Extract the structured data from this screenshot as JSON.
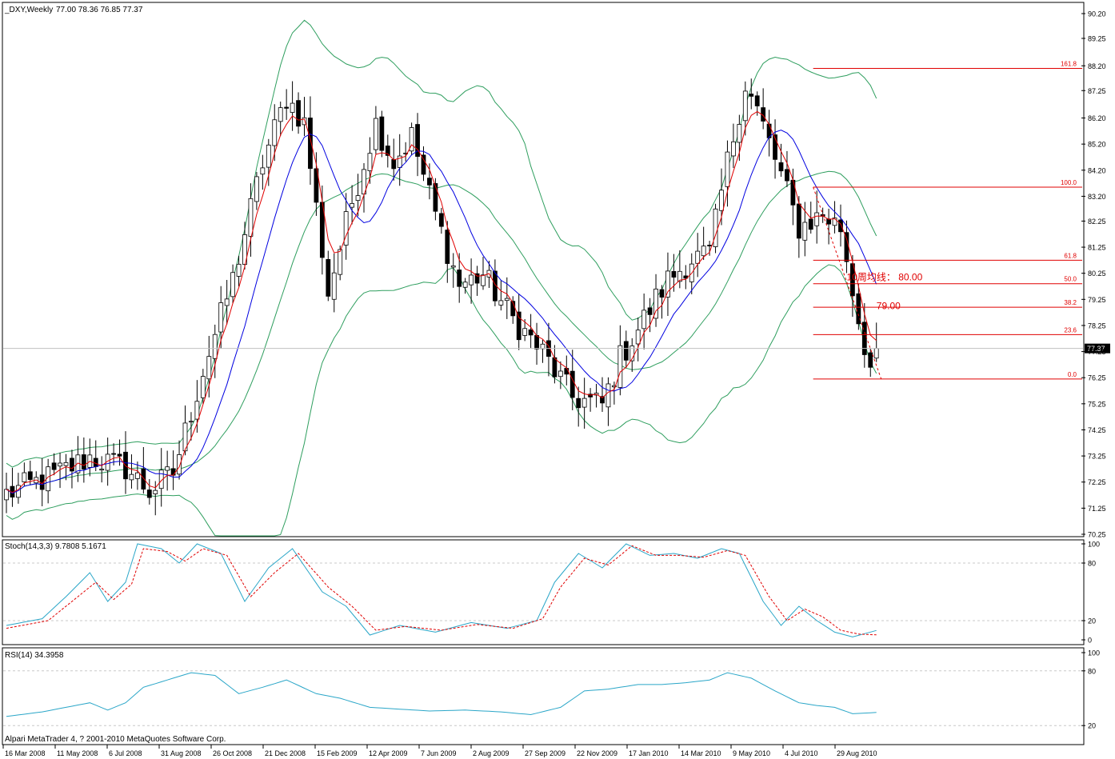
{
  "window": {
    "symbol_label": "_DXY,Weekly",
    "ohlc_label": "77.00 78.36 76.85 77.37",
    "current_price_tag": "77.37",
    "copyright": "Alpari MetaTrader 4, ? 2001-2010 MetaQuotes Software Corp."
  },
  "colors": {
    "background": "#ffffff",
    "candle_bull_fill": "#ffffff",
    "candle_bear_fill": "#000000",
    "ma_fast": "#e00000",
    "ma_slow": "#0000e0",
    "bollinger": "#2e9e5e",
    "stoch_main": "#2aa6c8",
    "stoch_signal": "#e00000",
    "rsi": "#2aa6c8",
    "fib": "#e00000",
    "grid": "#c8c8c8"
  },
  "chart_data": [
    {
      "type": "candlestick",
      "title": "_DXY,Weekly",
      "ylim": [
        70.25,
        90.2
      ],
      "price_ticks": [
        "90.20",
        "89.25",
        "88.20",
        "87.25",
        "86.20",
        "85.20",
        "84.20",
        "83.20",
        "82.25",
        "81.25",
        "80.25",
        "79.25",
        "78.25",
        "77.25",
        "76.25",
        "75.25",
        "74.25",
        "73.25",
        "72.25",
        "71.25",
        "70.25"
      ],
      "x_labels": [
        "16 Mar 2008",
        "11 May 2008",
        "6 Jul 2008",
        "31 Aug 2008",
        "26 Oct 2008",
        "21 Dec 2008",
        "15 Feb 2009",
        "12 Apr 2009",
        "7 Jun 2009",
        "2 Aug 2009",
        "27 Sep 2009",
        "22 Nov 2009",
        "17 Jan 2010",
        "14 Mar 2010",
        "9 May 2010",
        "4 Jul 2010",
        "29 Aug 2010"
      ],
      "anchors": [
        [
          0,
          71.8
        ],
        [
          8,
          72.5
        ],
        [
          14,
          73.2
        ],
        [
          20,
          72.8
        ],
        [
          24,
          71.9
        ],
        [
          28,
          72.6
        ],
        [
          33,
          76.5
        ],
        [
          38,
          80.0
        ],
        [
          43,
          84.5
        ],
        [
          47,
          87.0
        ],
        [
          50,
          86.0
        ],
        [
          54,
          79.5
        ],
        [
          58,
          83.0
        ],
        [
          62,
          86.0
        ],
        [
          65,
          84.5
        ],
        [
          68,
          85.5
        ],
        [
          72,
          82.5
        ],
        [
          76,
          79.8
        ],
        [
          80,
          80.2
        ],
        [
          85,
          78.5
        ],
        [
          90,
          77.2
        ],
        [
          95,
          75.5
        ],
        [
          100,
          75.2
        ],
        [
          103,
          77.0
        ],
        [
          107,
          78.5
        ],
        [
          111,
          80.0
        ],
        [
          115,
          80.8
        ],
        [
          118,
          81.0
        ],
        [
          121,
          84.5
        ],
        [
          124,
          87.5
        ],
        [
          126,
          86.5
        ],
        [
          130,
          84.0
        ],
        [
          133,
          82.0
        ],
        [
          137,
          82.5
        ],
        [
          140,
          82.0
        ],
        [
          143,
          78.5
        ],
        [
          145,
          76.6
        ],
        [
          146,
          77.0
        ]
      ],
      "last_candle": {
        "open": 77.0,
        "high": 78.36,
        "low": 76.85,
        "close": 77.37
      },
      "indicators": [
        "MA fast (red)",
        "MA slow (blue)",
        "Bollinger Bands (green)"
      ],
      "fibonacci": {
        "levels": [
          {
            "label": "161.8",
            "price": 88.1
          },
          {
            "label": "100.0",
            "price": 83.55
          },
          {
            "label": "61.8",
            "price": 80.75
          },
          {
            "label": "50.0",
            "price": 79.85
          },
          {
            "label": "38.2",
            "price": 78.95
          },
          {
            "label": "23.6",
            "price": 77.9
          },
          {
            "label": "0.0",
            "price": 76.2
          }
        ],
        "start_bar": 137
      },
      "annotations": [
        {
          "text": "10周均线： 80.00",
          "price": 80.1,
          "bar": 139
        },
        {
          "text": "79.00",
          "price": 79.0,
          "bar": 144
        }
      ]
    },
    {
      "type": "line",
      "title": "Stoch(14,3,3) 9.7808 5.1671",
      "ylim": [
        0,
        100
      ],
      "y_ticks": [
        "100",
        "80",
        "20",
        "0"
      ],
      "levels": [
        80,
        20
      ],
      "series": [
        {
          "name": "main",
          "anchors": [
            [
              0,
              15
            ],
            [
              6,
              22
            ],
            [
              10,
              45
            ],
            [
              14,
              70
            ],
            [
              17,
              40
            ],
            [
              20,
              60
            ],
            [
              22,
              100
            ],
            [
              26,
              95
            ],
            [
              29,
              80
            ],
            [
              32,
              100
            ],
            [
              36,
              90
            ],
            [
              40,
              40
            ],
            [
              44,
              75
            ],
            [
              48,
              95
            ],
            [
              53,
              50
            ],
            [
              57,
              35
            ],
            [
              61,
              5
            ],
            [
              66,
              15
            ],
            [
              72,
              8
            ],
            [
              78,
              18
            ],
            [
              84,
              12
            ],
            [
              89,
              20
            ],
            [
              92,
              60
            ],
            [
              96,
              90
            ],
            [
              100,
              75
            ],
            [
              104,
              100
            ],
            [
              108,
              88
            ],
            [
              112,
              90
            ],
            [
              116,
              85
            ],
            [
              120,
              95
            ],
            [
              123,
              90
            ],
            [
              127,
              40
            ],
            [
              130,
              15
            ],
            [
              133,
              35
            ],
            [
              136,
              20
            ],
            [
              139,
              8
            ],
            [
              142,
              3
            ],
            [
              146,
              9.78
            ]
          ]
        },
        {
          "name": "signal",
          "anchors": [
            [
              0,
              12
            ],
            [
              7,
              20
            ],
            [
              11,
              40
            ],
            [
              15,
              60
            ],
            [
              18,
              42
            ],
            [
              21,
              58
            ],
            [
              23,
              95
            ],
            [
              27,
              92
            ],
            [
              30,
              82
            ],
            [
              33,
              95
            ],
            [
              37,
              88
            ],
            [
              41,
              45
            ],
            [
              45,
              70
            ],
            [
              49,
              90
            ],
            [
              54,
              55
            ],
            [
              58,
              35
            ],
            [
              62,
              10
            ],
            [
              67,
              14
            ],
            [
              73,
              10
            ],
            [
              79,
              16
            ],
            [
              85,
              12
            ],
            [
              90,
              22
            ],
            [
              93,
              55
            ],
            [
              97,
              85
            ],
            [
              101,
              78
            ],
            [
              105,
              98
            ],
            [
              109,
              88
            ],
            [
              113,
              88
            ],
            [
              117,
              86
            ],
            [
              121,
              93
            ],
            [
              124,
              88
            ],
            [
              128,
              45
            ],
            [
              131,
              20
            ],
            [
              134,
              32
            ],
            [
              137,
              24
            ],
            [
              140,
              10
            ],
            [
              143,
              6
            ],
            [
              146,
              5.17
            ]
          ]
        }
      ]
    },
    {
      "type": "line",
      "title": "RSI(14) 34.3958",
      "ylim": [
        0,
        100
      ],
      "y_ticks": [
        "100",
        "80",
        "20"
      ],
      "levels": [
        80,
        20
      ],
      "series": [
        {
          "name": "RSI",
          "anchors": [
            [
              0,
              30
            ],
            [
              6,
              35
            ],
            [
              10,
              40
            ],
            [
              14,
              45
            ],
            [
              17,
              37
            ],
            [
              20,
              45
            ],
            [
              23,
              62
            ],
            [
              27,
              70
            ],
            [
              31,
              78
            ],
            [
              35,
              75
            ],
            [
              39,
              55
            ],
            [
              43,
              62
            ],
            [
              47,
              70
            ],
            [
              52,
              55
            ],
            [
              56,
              50
            ],
            [
              61,
              40
            ],
            [
              66,
              38
            ],
            [
              71,
              36
            ],
            [
              77,
              37
            ],
            [
              83,
              35
            ],
            [
              88,
              32
            ],
            [
              93,
              40
            ],
            [
              97,
              58
            ],
            [
              101,
              60
            ],
            [
              106,
              65
            ],
            [
              110,
              65
            ],
            [
              114,
              67
            ],
            [
              118,
              70
            ],
            [
              121,
              78
            ],
            [
              125,
              72
            ],
            [
              129,
              58
            ],
            [
              133,
              45
            ],
            [
              136,
              42
            ],
            [
              139,
              40
            ],
            [
              142,
              33
            ],
            [
              146,
              34.4
            ]
          ]
        }
      ]
    }
  ]
}
